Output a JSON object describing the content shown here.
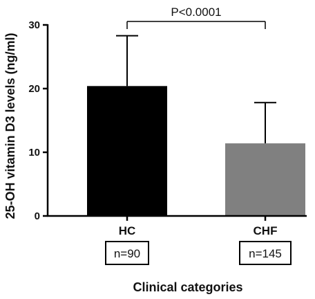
{
  "chart_data": {
    "type": "bar",
    "categories": [
      "HC",
      "CHF"
    ],
    "values": [
      20.4,
      11.4
    ],
    "error_bars_upper": [
      28.3,
      17.8
    ],
    "sample_sizes": [
      "n=90",
      "n=145"
    ],
    "bar_colors": [
      "#000000",
      "#808080"
    ],
    "ylabel": "25-OH vitamin D3 levels (ng/ml)",
    "xlabel": "Clinical categories",
    "ylim": [
      0,
      30
    ],
    "yticks": [
      0,
      10,
      20,
      30
    ],
    "significance": {
      "text": "P<0.0001",
      "between": [
        "HC",
        "CHF"
      ]
    },
    "grid": false,
    "legend": "none"
  }
}
